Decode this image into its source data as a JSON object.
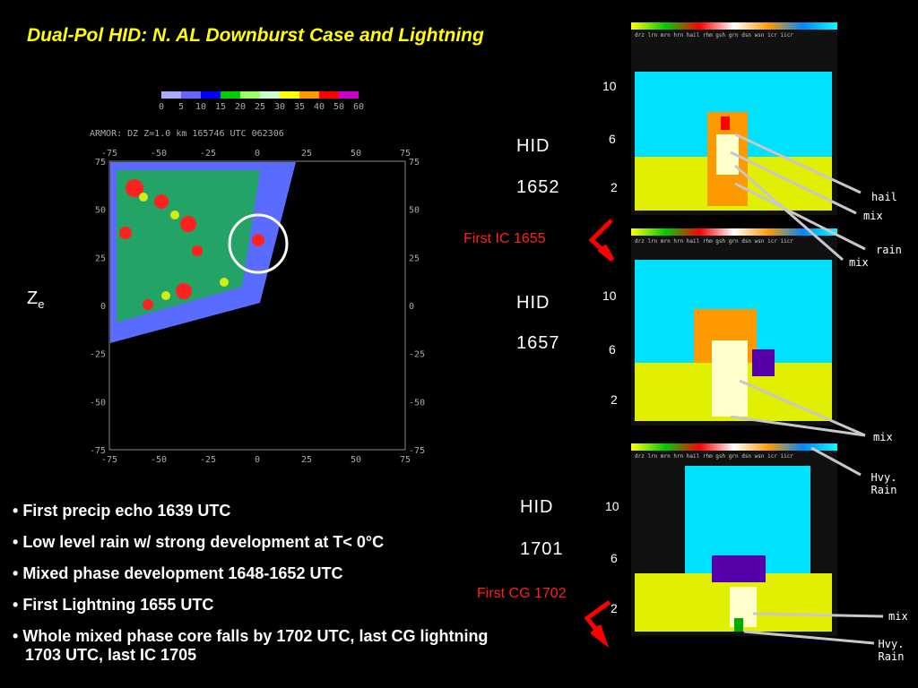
{
  "title": "Dual-Pol HID: N. AL Downburst Case and Lightning",
  "ze": {
    "main": "Z",
    "sub": "e"
  },
  "radar": {
    "header": "ARMOR: DZ  Z=1.0 km 165746 UTC 062306",
    "colorbar_ticks": [
      "0",
      "5",
      "10",
      "15",
      "20",
      "25",
      "30",
      "35",
      "40",
      "50",
      "60"
    ],
    "x_ticks": [
      "-75",
      "-50",
      "-25",
      "0",
      "25",
      "50",
      "75"
    ],
    "y_ticks": [
      "75",
      "50",
      "25",
      "0",
      "-25",
      "-50",
      "-75"
    ]
  },
  "bullets": [
    "First precip echo 1639 UTC",
    "Low level rain w/ strong development at T< 0°C",
    "Mixed phase development 1648-1652 UTC",
    "First Lightning 1655 UTC",
    "Whole mixed phase core falls by 1702 UTC, last CG lightning 1703 UTC, last IC 1705"
  ],
  "hid_legend": [
    "drz",
    "lrn",
    "mrn",
    "hrn",
    "hail",
    "rhm",
    "gsh",
    "grn",
    "dsn",
    "wsn",
    "icr",
    "iicr"
  ],
  "panels": [
    {
      "label": "HID",
      "time": "1652",
      "heights": [
        "10",
        "6",
        "2"
      ]
    },
    {
      "label": "HID",
      "time": "1657",
      "heights": [
        "10",
        "6",
        "2"
      ]
    },
    {
      "label": "HID",
      "time": "1701",
      "heights": [
        "10",
        "6",
        "2"
      ]
    }
  ],
  "events": {
    "ic": "First IC 1655",
    "cg": "First CG 1702"
  },
  "annotations": {
    "hail": "hail",
    "mix1": "mix",
    "rain": "rain",
    "mix2": "mix",
    "mix3": "mix",
    "hvy_rain_1": "Hvy. Rain",
    "mix4": "mix",
    "hvy_rain_2": "Hvy. Rain"
  },
  "colors": {
    "title": "#ffff00",
    "event": "#ff2020",
    "arrow": "#ff0000",
    "pointer": "#c8c8c8"
  }
}
